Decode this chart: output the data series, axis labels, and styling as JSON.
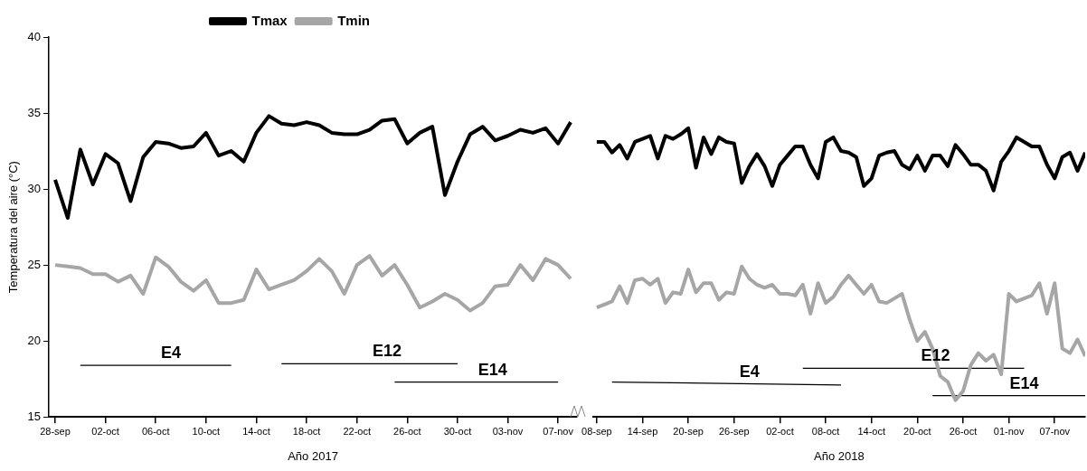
{
  "chart_data": [
    {
      "type": "line",
      "xlabel": "Año 2017",
      "ylabel": "Temperatura del aire (°C)",
      "legend": "top",
      "grid": false,
      "marker": "none",
      "x": [
        "2017-09-28",
        "2017-09-29",
        "2017-09-30",
        "2017-10-01",
        "2017-10-02",
        "2017-10-03",
        "2017-10-04",
        "2017-10-05",
        "2017-10-06",
        "2017-10-07",
        "2017-10-08",
        "2017-10-09",
        "2017-10-10",
        "2017-10-11",
        "2017-10-12",
        "2017-10-13",
        "2017-10-14",
        "2017-10-15",
        "2017-10-16",
        "2017-10-17",
        "2017-10-18",
        "2017-10-19",
        "2017-10-20",
        "2017-10-21",
        "2017-10-22",
        "2017-10-23",
        "2017-10-24",
        "2017-10-25",
        "2017-10-26",
        "2017-10-27",
        "2017-10-28",
        "2017-10-29",
        "2017-10-30",
        "2017-10-31",
        "2017-11-01",
        "2017-11-02",
        "2017-11-03",
        "2017-11-04",
        "2017-11-05",
        "2017-11-06",
        "2017-11-07",
        "2017-11-08"
      ],
      "xlim": [
        "2017-09-27T12:00",
        "2017-11-08T12:00"
      ],
      "xticks": [
        {
          "value": "2017-09-28",
          "label": "28-sep"
        },
        {
          "value": "2017-10-02",
          "label": "02-oct"
        },
        {
          "value": "2017-10-06",
          "label": "06-oct"
        },
        {
          "value": "2017-10-10",
          "label": "10-oct"
        },
        {
          "value": "2017-10-14",
          "label": "14-oct"
        },
        {
          "value": "2017-10-18",
          "label": "18-oct"
        },
        {
          "value": "2017-10-22",
          "label": "22-oct"
        },
        {
          "value": "2017-10-26",
          "label": "26-oct"
        },
        {
          "value": "2017-10-30",
          "label": "30-oct"
        },
        {
          "value": "2017-11-03",
          "label": "03-nov"
        },
        {
          "value": "2017-11-07",
          "label": "07-nov"
        }
      ],
      "ylim": [
        15,
        40
      ],
      "yticks": [
        15,
        20,
        25,
        30,
        35,
        40
      ],
      "series": [
        {
          "name": "Tmax",
          "color": "#000000",
          "values": [
            30.6,
            28.1,
            32.6,
            30.3,
            32.3,
            31.7,
            29.2,
            32.1,
            33.1,
            33.0,
            32.7,
            32.8,
            33.7,
            32.2,
            32.5,
            31.8,
            33.7,
            34.8,
            34.3,
            34.2,
            34.4,
            34.2,
            33.7,
            33.6,
            33.6,
            33.9,
            34.5,
            34.6,
            33.0,
            33.7,
            34.1,
            29.6,
            31.8,
            33.6,
            34.1,
            33.2,
            33.5,
            33.9,
            33.7,
            34.0,
            33.0,
            34.4
          ]
        },
        {
          "name": "Tmin",
          "color": "#a6a6a6",
          "values": [
            25.0,
            24.9,
            24.8,
            24.4,
            24.4,
            23.9,
            24.3,
            23.1,
            25.5,
            24.9,
            23.9,
            23.3,
            24.0,
            22.5,
            22.5,
            22.7,
            24.7,
            23.4,
            23.7,
            24.0,
            24.6,
            25.4,
            24.6,
            23.1,
            25.0,
            25.6,
            24.3,
            25.0,
            23.7,
            22.2,
            22.6,
            23.1,
            22.7,
            22.0,
            22.5,
            23.6,
            23.7,
            25.0,
            24.0,
            25.4,
            25.0,
            24.1
          ]
        },
        {
          "type": "line",
          "name": "E4",
          "color": "#000000",
          "x": [
            "2017-09-30",
            "2017-10-12"
          ],
          "values": [
            18.4,
            18.4
          ]
        },
        {
          "type": "line",
          "name": "E12",
          "color": "#000000",
          "x": [
            "2017-10-16",
            "2017-10-30"
          ],
          "values": [
            18.5,
            18.5
          ]
        },
        {
          "type": "line",
          "name": "E14",
          "color": "#000000",
          "x": [
            "2017-10-25",
            "2017-11-07"
          ],
          "values": [
            17.3,
            17.3
          ]
        }
      ]
    },
    {
      "type": "line",
      "xlabel": "Año 2018",
      "grid": false,
      "marker": "none",
      "tick_labels": "x",
      "x": [
        "2018-09-08",
        "2018-09-09",
        "2018-09-10",
        "2018-09-11",
        "2018-09-12",
        "2018-09-13",
        "2018-09-14",
        "2018-09-15",
        "2018-09-16",
        "2018-09-17",
        "2018-09-18",
        "2018-09-19",
        "2018-09-20",
        "2018-09-21",
        "2018-09-22",
        "2018-09-23",
        "2018-09-24",
        "2018-09-25",
        "2018-09-26",
        "2018-09-27",
        "2018-09-28",
        "2018-09-29",
        "2018-09-30",
        "2018-10-01",
        "2018-10-02",
        "2018-10-03",
        "2018-10-04",
        "2018-10-05",
        "2018-10-06",
        "2018-10-07",
        "2018-10-08",
        "2018-10-09",
        "2018-10-10",
        "2018-10-11",
        "2018-10-12",
        "2018-10-13",
        "2018-10-14",
        "2018-10-15",
        "2018-10-16",
        "2018-10-17",
        "2018-10-18",
        "2018-10-19",
        "2018-10-20",
        "2018-10-21",
        "2018-10-22",
        "2018-10-23",
        "2018-10-24",
        "2018-10-25",
        "2018-10-26",
        "2018-10-27",
        "2018-10-28",
        "2018-10-29",
        "2018-10-30",
        "2018-10-31",
        "2018-11-01",
        "2018-11-02",
        "2018-11-03",
        "2018-11-04",
        "2018-11-05",
        "2018-11-06",
        "2018-11-07",
        "2018-11-08",
        "2018-11-09",
        "2018-11-10",
        "2018-11-11"
      ],
      "xlim": [
        "2018-09-07T12:00",
        "2018-11-11"
      ],
      "xticks": [
        {
          "value": "2018-09-08",
          "label": "08-sep"
        },
        {
          "value": "2018-09-14",
          "label": "14-sep"
        },
        {
          "value": "2018-09-20",
          "label": "20-sep"
        },
        {
          "value": "2018-09-26",
          "label": "26-sep"
        },
        {
          "value": "2018-10-02",
          "label": "02-oct"
        },
        {
          "value": "2018-10-08",
          "label": "08-oct"
        },
        {
          "value": "2018-10-14",
          "label": "14-oct"
        },
        {
          "value": "2018-10-20",
          "label": "20-oct"
        },
        {
          "value": "2018-10-26",
          "label": "26-oct"
        },
        {
          "value": "2018-11-01",
          "label": "01-nov"
        },
        {
          "value": "2018-11-07",
          "label": "07-nov"
        }
      ],
      "ylim": [
        15,
        40
      ],
      "yticks": [
        15,
        20,
        25,
        30,
        35,
        40
      ],
      "series": [
        {
          "color": "#000000",
          "values": [
            33.1,
            33.1,
            32.4,
            32.9,
            32.0,
            33.1,
            33.3,
            33.5,
            32.0,
            33.5,
            33.3,
            33.6,
            34.0,
            31.4,
            33.4,
            32.3,
            33.4,
            33.1,
            33.0,
            30.4,
            31.5,
            32.3,
            31.5,
            30.2,
            31.6,
            32.2,
            32.8,
            32.8,
            31.6,
            30.7,
            33.1,
            33.4,
            32.5,
            32.4,
            32.1,
            30.2,
            30.7,
            32.2,
            32.4,
            32.5,
            31.6,
            31.3,
            32.2,
            31.2,
            32.2,
            32.2,
            31.5,
            32.9,
            32.3,
            31.6,
            31.6,
            31.2,
            29.9,
            31.8,
            32.5,
            33.4,
            33.1,
            32.8,
            32.8,
            31.6,
            30.7,
            32.1,
            32.4,
            31.2,
            32.4
          ]
        },
        {
          "color": "#a6a6a6",
          "values": [
            22.2,
            22.4,
            22.6,
            23.6,
            22.5,
            24.0,
            24.1,
            23.7,
            24.1,
            22.5,
            23.2,
            23.1,
            24.7,
            23.2,
            23.8,
            23.8,
            22.7,
            23.2,
            23.1,
            24.9,
            24.1,
            23.7,
            23.5,
            23.7,
            23.1,
            23.1,
            23.0,
            23.7,
            21.8,
            23.8,
            22.5,
            22.9,
            23.7,
            24.3,
            23.7,
            23.1,
            23.7,
            22.6,
            22.5,
            22.8,
            23.1,
            21.4,
            20.0,
            20.6,
            19.5,
            17.7,
            17.3,
            16.1,
            16.7,
            18.4,
            19.2,
            18.7,
            19.1,
            17.8,
            23.1,
            22.6,
            22.8,
            23.0,
            23.8,
            21.8,
            23.8,
            19.5,
            19.2,
            20.1,
            19.0
          ]
        },
        {
          "type": "line",
          "name": "E4",
          "color": "#000000",
          "x": [
            "2018-09-10",
            "2018-10-10"
          ],
          "values": [
            17.3,
            17.1
          ]
        },
        {
          "type": "line",
          "name": "E12",
          "color": "#000000",
          "x": [
            "2018-10-05",
            "2018-11-03"
          ],
          "values": [
            18.2,
            18.2
          ]
        },
        {
          "type": "line",
          "name": "E14",
          "color": "#000000",
          "x": [
            "2018-10-22",
            "2018-11-11"
          ],
          "values": [
            16.4,
            16.4
          ]
        }
      ]
    }
  ]
}
